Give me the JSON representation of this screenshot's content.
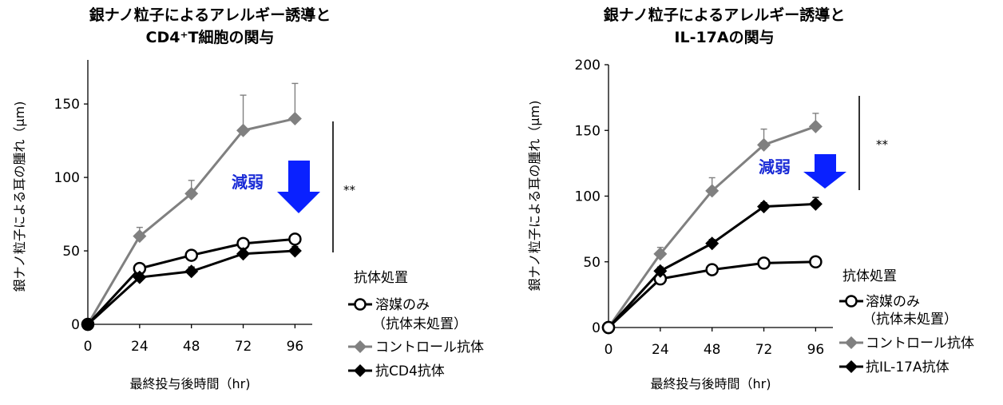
{
  "chart_data": [
    {
      "type": "line",
      "title_lines": [
        "銀ナノ粒子によるアレルギー誘導と",
        "CD4⁺T細胞の関与"
      ],
      "xlabel": "最終投与後時間（hr)",
      "ylabel": "銀ナノ粒子による耳の腫れ（μm)",
      "x": [
        0,
        24,
        48,
        72,
        96
      ],
      "xlim": [
        0,
        104
      ],
      "ylim": [
        0,
        180
      ],
      "yticks": [
        0,
        50,
        100,
        150
      ],
      "series": [
        {
          "name": "溶媒のみ（抗体未処置）",
          "values": [
            0,
            38,
            47,
            55,
            58
          ],
          "errors": [
            0,
            3,
            3,
            3,
            3
          ],
          "marker": "circle",
          "color": "#000000"
        },
        {
          "name": "コントロール抗体",
          "values": [
            0,
            60,
            89,
            132,
            140
          ],
          "errors": [
            0,
            6,
            9,
            24,
            24
          ],
          "marker": "diamond",
          "color": "#808080"
        },
        {
          "name": "抗CD4抗体",
          "values": [
            0,
            32,
            36,
            48,
            50
          ],
          "errors": [
            0,
            3,
            3,
            3,
            3
          ],
          "marker": "diamond",
          "color": "#000000"
        }
      ],
      "annotations": {
        "arrow_label": "減弱",
        "significance": "**"
      },
      "legend_title": "抗体処置",
      "legend_entries": [
        "溶媒のみ",
        "（抗体未処置）",
        "コントロール抗体",
        "抗CD4抗体"
      ]
    },
    {
      "type": "line",
      "title_lines": [
        "銀ナノ粒子によるアレルギー誘導と",
        "IL-17Aの関与"
      ],
      "xlabel": "最終投与後時間（hr)",
      "ylabel": "銀ナノ粒子による耳の腫れ（μm)",
      "x": [
        0,
        24,
        48,
        72,
        96
      ],
      "xlim": [
        0,
        104
      ],
      "ylim": [
        0,
        200
      ],
      "yticks": [
        0,
        50,
        100,
        150,
        200
      ],
      "series": [
        {
          "name": "溶媒のみ（抗体未処置）",
          "values": [
            0,
            37,
            44,
            49,
            50
          ],
          "errors": [
            0,
            2,
            2,
            2,
            2
          ],
          "marker": "circle",
          "color": "#000000"
        },
        {
          "name": "コントロール抗体",
          "values": [
            0,
            56,
            104,
            139,
            153
          ],
          "errors": [
            0,
            5,
            10,
            12,
            10
          ],
          "marker": "diamond",
          "color": "#808080"
        },
        {
          "name": "抗IL-17A抗体",
          "values": [
            0,
            43,
            64,
            92,
            94
          ],
          "errors": [
            0,
            3,
            3,
            3,
            5
          ],
          "marker": "diamond",
          "color": "#000000"
        }
      ],
      "annotations": {
        "arrow_label": "減弱",
        "significance": "**"
      },
      "legend_title": "抗体処置",
      "legend_entries": [
        "溶媒のみ",
        "（抗体未処置）",
        "コントロール抗体",
        "抗IL-17A抗体"
      ]
    }
  ],
  "colors": {
    "arrow": "#0a21ff",
    "arrow_label": "#1a2bd6",
    "control": "#808080",
    "black": "#000000"
  }
}
